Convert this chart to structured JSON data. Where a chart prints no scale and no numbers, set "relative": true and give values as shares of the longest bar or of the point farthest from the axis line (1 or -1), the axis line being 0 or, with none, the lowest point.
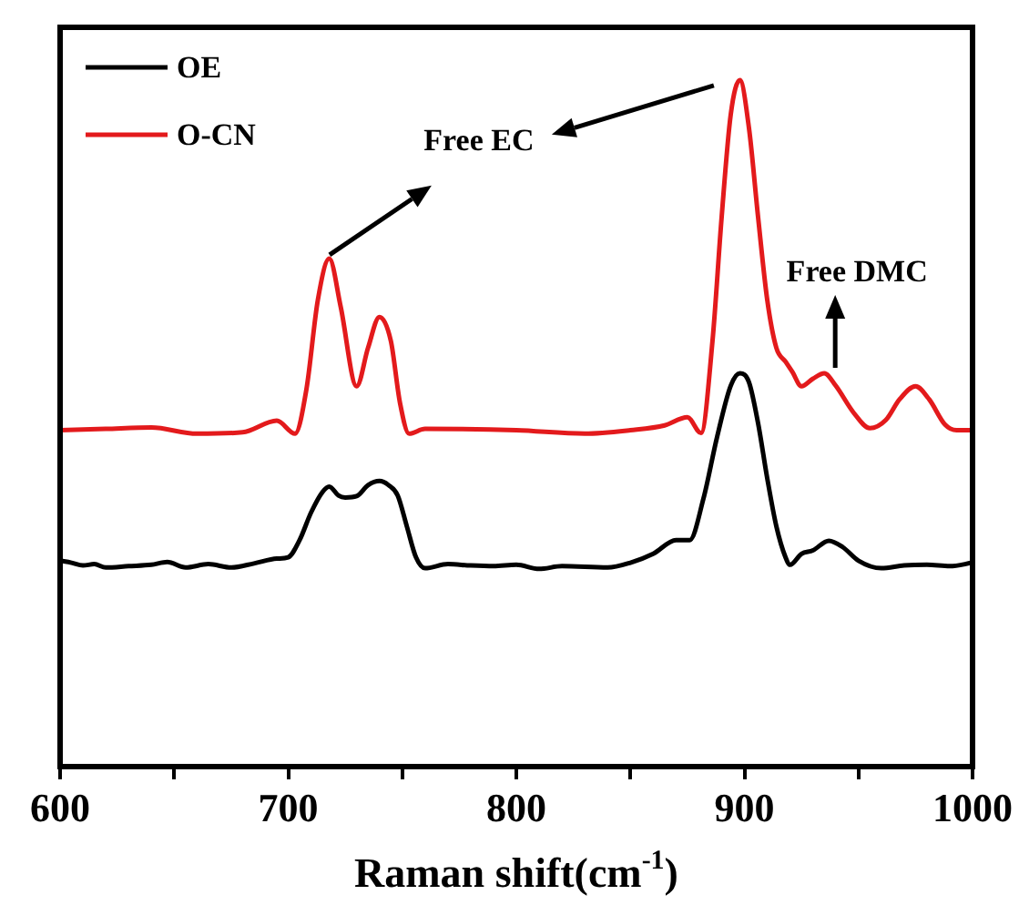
{
  "chart_data": {
    "type": "line",
    "xlabel": "Raman shift(cm$^{-1}$)",
    "relative": true,
    "xlim": [
      600,
      1000
    ],
    "xticks": [
      600,
      {
        "value": 650,
        "label": null
      },
      700,
      {
        "value": 750,
        "label": null
      },
      800,
      {
        "value": 850,
        "label": null
      },
      900,
      {
        "value": 950,
        "label": null
      },
      1000
    ],
    "grid": false,
    "legend": "top left",
    "marker": "none",
    "line_style": "solid",
    "annotations": [
      "Free EC",
      {
        "text": "Free DMC",
        "x": 935,
        "y": 0.573
      }
    ],
    "series": [
      {
        "name": "OE",
        "color": "#000000",
        "x": [
          600,
          605,
          610,
          615,
          620,
          630,
          640,
          647,
          655,
          665,
          675,
          685,
          695,
          700,
          705,
          710,
          715,
          718,
          722,
          725,
          730,
          735,
          740,
          744,
          748,
          752,
          756,
          760,
          770,
          780,
          790,
          800,
          810,
          820,
          840,
          850,
          860,
          870,
          876,
          882,
          888,
          894,
          898,
          902,
          906,
          910,
          914,
          918,
          920,
          925,
          930,
          937,
          943,
          950,
          960,
          970,
          980,
          990,
          1000
        ],
        "values": [
          0.3,
          0.297,
          0.293,
          0.295,
          0.29,
          0.292,
          0.294,
          0.298,
          0.29,
          0.295,
          0.29,
          0.296,
          0.303,
          0.305,
          0.33,
          0.37,
          0.4,
          0.408,
          0.395,
          0.392,
          0.394,
          0.41,
          0.416,
          0.41,
          0.395,
          0.35,
          0.305,
          0.289,
          0.295,
          0.293,
          0.292,
          0.294,
          0.288,
          0.292,
          0.29,
          0.297,
          0.31,
          0.33,
          0.33,
          0.39,
          0.48,
          0.555,
          0.573,
          0.56,
          0.5,
          0.42,
          0.35,
          0.305,
          0.294,
          0.31,
          0.315,
          0.329,
          0.32,
          0.3,
          0.289,
          0.293,
          0.294,
          0.292,
          0.297
        ]
      },
      {
        "name": "O-CN",
        "color": "#e31a1c",
        "x": [
          600,
          620,
          640,
          660,
          680,
          695,
          703,
          708,
          713,
          718,
          723,
          730,
          735,
          740,
          745,
          749,
          753,
          760,
          800,
          830,
          850,
          865,
          875,
          881,
          886,
          890,
          894,
          898,
          902,
          906,
          910,
          914,
          918,
          921,
          925,
          930,
          935,
          940,
          948,
          955,
          962,
          968,
          975,
          981,
          988,
          993,
          1000
        ],
        "values": [
          0.49,
          0.492,
          0.494,
          0.485,
          0.487,
          0.504,
          0.485,
          0.55,
          0.68,
          0.74,
          0.67,
          0.554,
          0.61,
          0.655,
          0.62,
          0.53,
          0.485,
          0.492,
          0.49,
          0.485,
          0.49,
          0.497,
          0.509,
          0.486,
          0.62,
          0.8,
          0.95,
          1.0,
          0.93,
          0.8,
          0.68,
          0.61,
          0.59,
          0.575,
          0.554,
          0.565,
          0.573,
          0.555,
          0.515,
          0.493,
          0.505,
          0.535,
          0.554,
          0.535,
          0.498,
          0.49,
          0.49
        ]
      }
    ]
  }
}
